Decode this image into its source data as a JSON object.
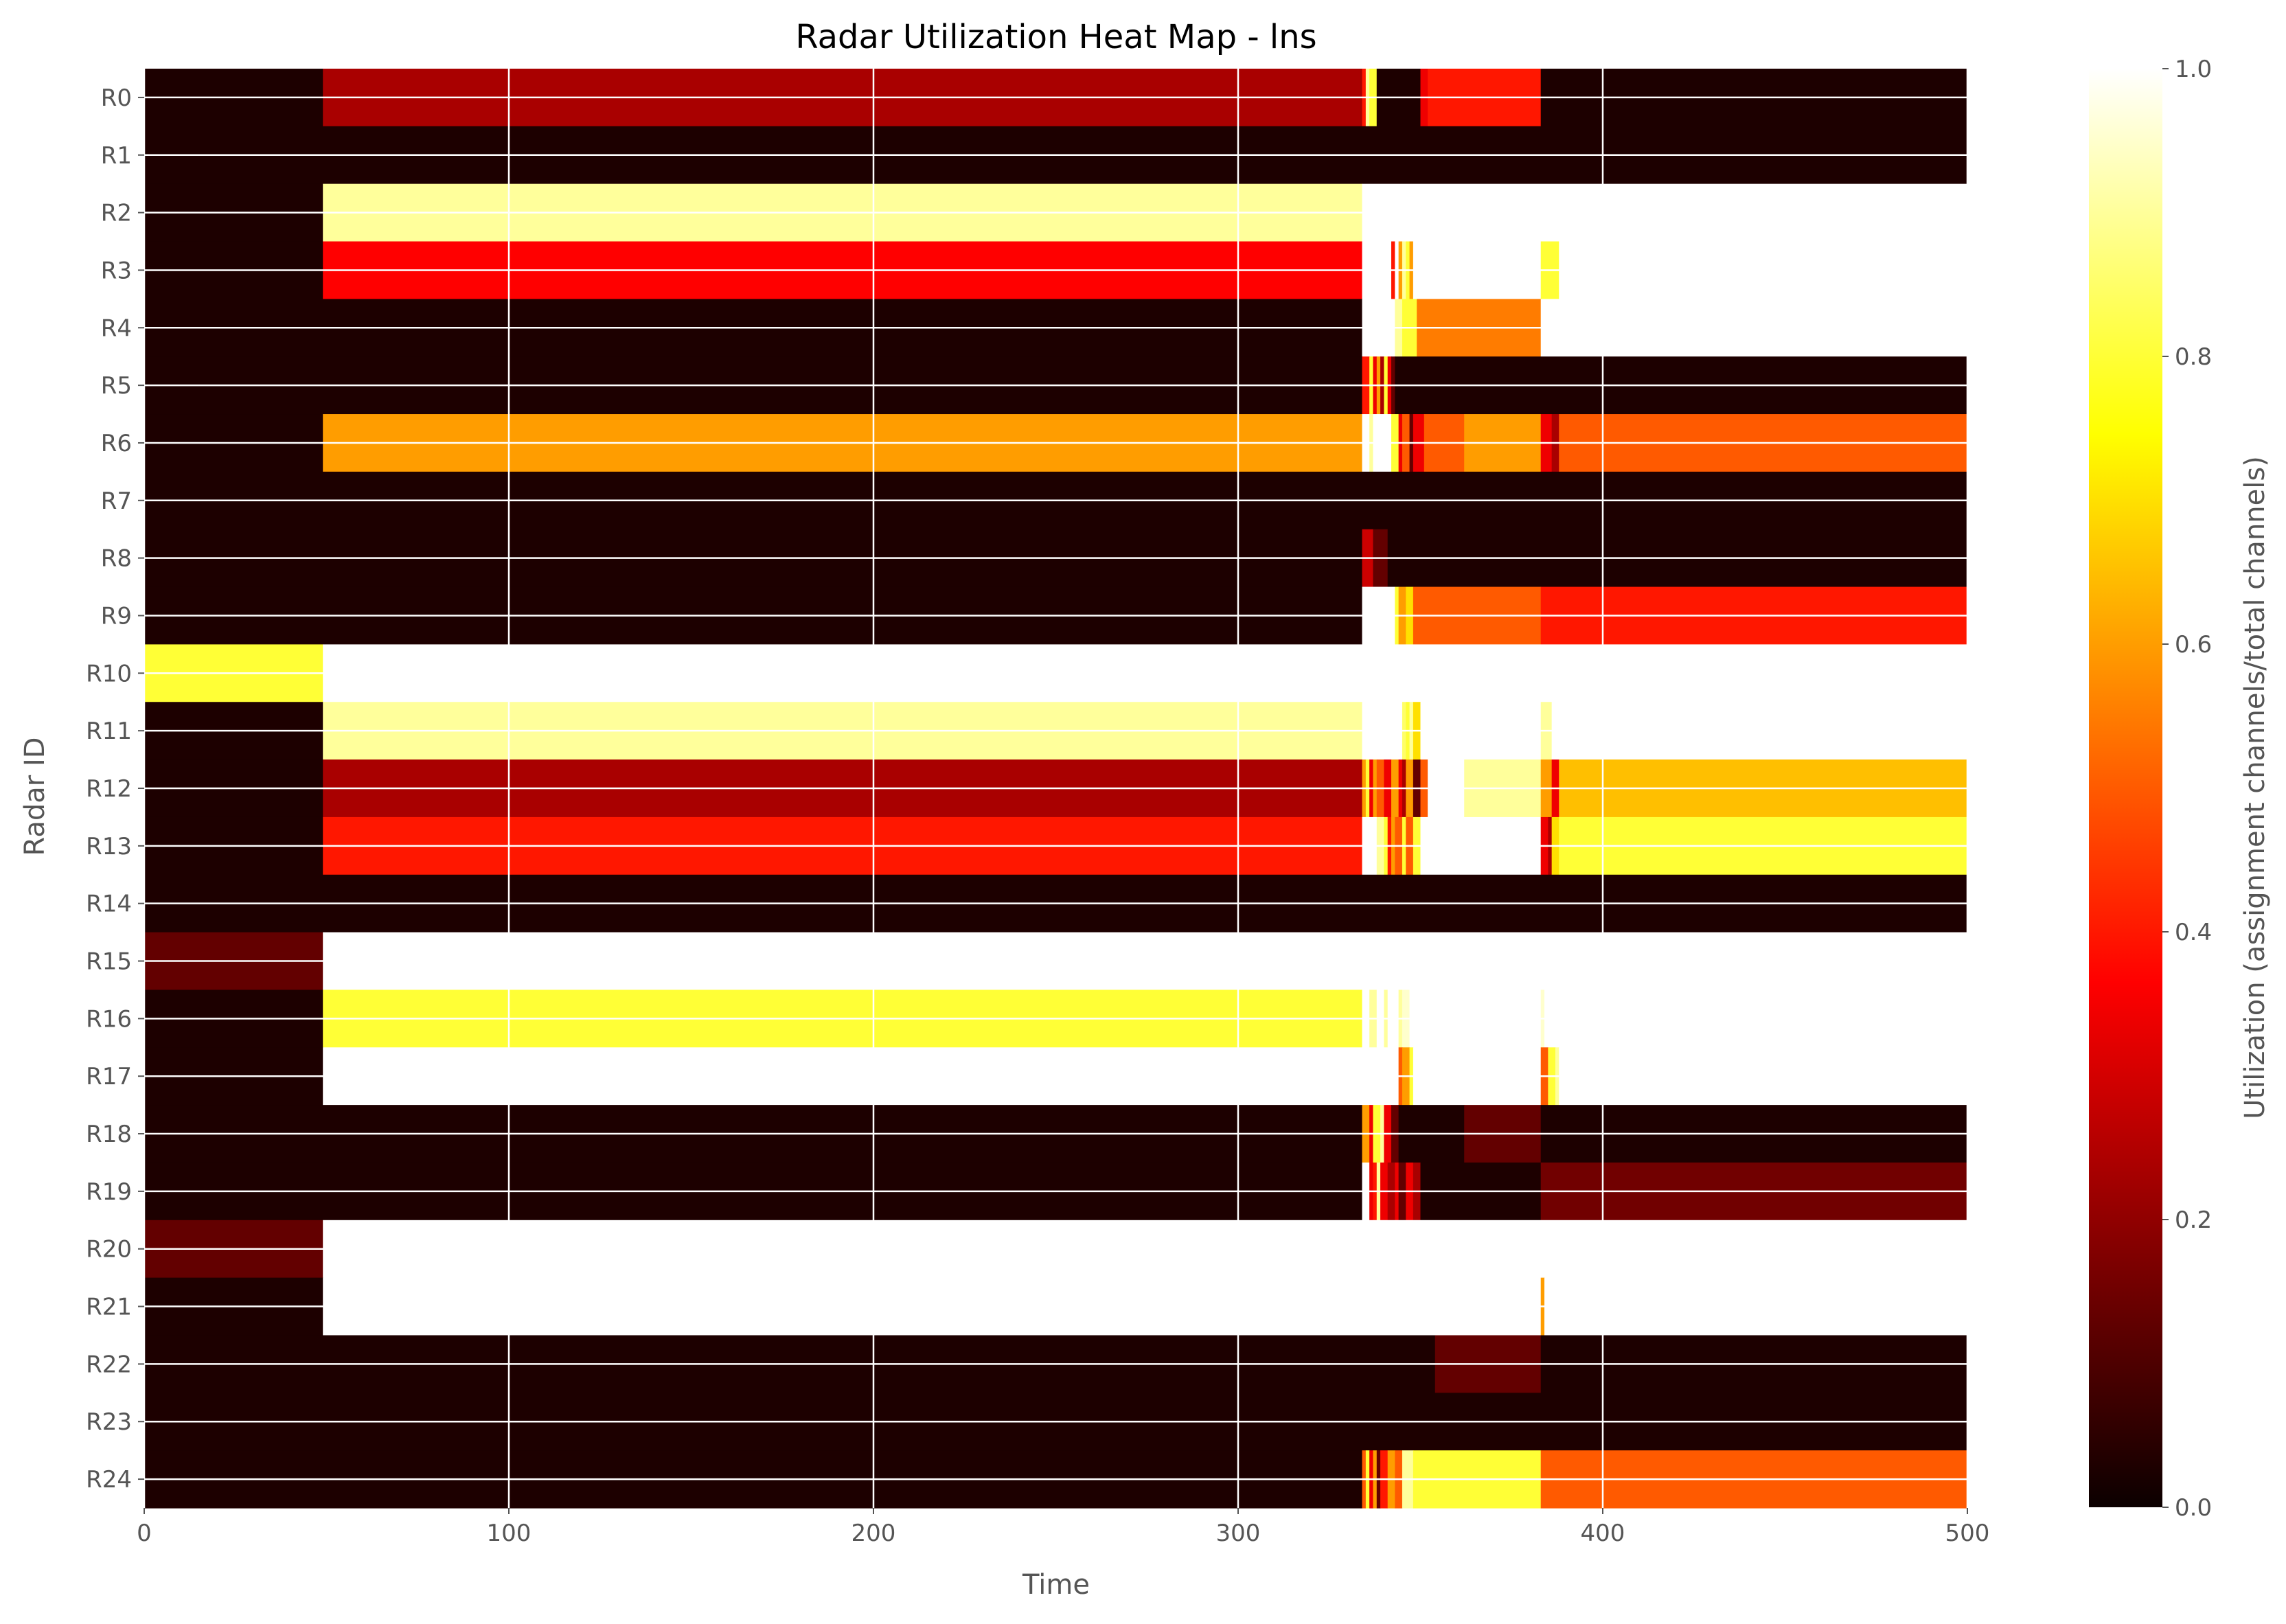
{
  "chart_data": {
    "type": "heatmap",
    "title": "Radar Utilization Heat Map - lns",
    "xlabel": "Time",
    "ylabel": "Radar ID",
    "colorbar_label": "Utilization (assignment channels/total channels)",
    "colormap": "hot",
    "xlim": [
      0,
      500
    ],
    "clim": [
      0.0,
      1.0
    ],
    "x_ticks": [
      0,
      100,
      200,
      300,
      400,
      500
    ],
    "colorbar_ticks": [
      "0.0",
      "0.2",
      "0.4",
      "0.6",
      "0.8",
      "1.0"
    ],
    "grid": true,
    "rows": [
      {
        "id": "R0",
        "segments": [
          [
            0,
            49,
            0
          ],
          [
            49,
            334,
            0.2
          ],
          [
            334,
            335,
            0.4
          ],
          [
            335,
            336,
            0.9
          ],
          [
            336,
            338,
            0.8
          ],
          [
            338,
            350,
            0
          ],
          [
            350,
            352,
            0.3
          ],
          [
            352,
            383,
            0.4
          ],
          [
            383,
            500,
            0
          ]
        ]
      },
      {
        "id": "R1",
        "segments": [
          [
            0,
            500,
            0
          ]
        ]
      },
      {
        "id": "R2",
        "segments": [
          [
            0,
            49,
            0
          ],
          [
            49,
            334,
            0.9
          ],
          [
            334,
            500,
            1.0
          ]
        ]
      },
      {
        "id": "R3",
        "segments": [
          [
            0,
            49,
            0
          ],
          [
            49,
            334,
            0.35
          ],
          [
            334,
            342,
            1.0
          ],
          [
            342,
            343,
            0.4
          ],
          [
            343,
            344,
            1.0
          ],
          [
            344,
            345,
            0.6
          ],
          [
            345,
            346,
            0.9
          ],
          [
            346,
            347,
            0.8
          ],
          [
            347,
            348,
            0.6
          ],
          [
            348,
            383,
            1.0
          ],
          [
            383,
            388,
            0.8
          ],
          [
            388,
            500,
            1.0
          ]
        ]
      },
      {
        "id": "R4",
        "segments": [
          [
            0,
            334,
            0
          ],
          [
            334,
            343,
            1.0
          ],
          [
            343,
            345,
            0.9
          ],
          [
            345,
            349,
            0.8
          ],
          [
            349,
            383,
            0.55
          ],
          [
            383,
            500,
            1.0
          ]
        ]
      },
      {
        "id": "R5",
        "segments": [
          [
            0,
            334,
            0
          ],
          [
            334,
            336,
            0.4
          ],
          [
            336,
            337,
            0.8
          ],
          [
            337,
            338,
            0.3
          ],
          [
            338,
            339,
            0.6
          ],
          [
            339,
            340,
            0.2
          ],
          [
            340,
            341,
            0.8
          ],
          [
            341,
            342,
            0.3
          ],
          [
            342,
            343,
            0.1
          ],
          [
            343,
            500,
            0
          ]
        ]
      },
      {
        "id": "R6",
        "segments": [
          [
            0,
            49,
            0
          ],
          [
            49,
            334,
            0.6
          ],
          [
            334,
            336,
            1.0
          ],
          [
            336,
            337,
            0.9
          ],
          [
            337,
            342,
            1.0
          ],
          [
            342,
            344,
            0.8
          ],
          [
            344,
            345,
            0.3
          ],
          [
            345,
            347,
            0.5
          ],
          [
            347,
            348,
            0.1
          ],
          [
            348,
            351,
            0.3
          ],
          [
            351,
            362,
            0.5
          ],
          [
            362,
            383,
            0.6
          ],
          [
            383,
            386,
            0.3
          ],
          [
            386,
            388,
            0.2
          ],
          [
            388,
            500,
            0.5
          ]
        ]
      },
      {
        "id": "R7",
        "segments": [
          [
            0,
            500,
            0
          ]
        ]
      },
      {
        "id": "R8",
        "segments": [
          [
            0,
            334,
            0
          ],
          [
            334,
            337,
            0.25
          ],
          [
            337,
            341,
            0.1
          ],
          [
            341,
            500,
            0
          ]
        ]
      },
      {
        "id": "R9",
        "segments": [
          [
            0,
            334,
            0
          ],
          [
            334,
            343,
            1.0
          ],
          [
            343,
            344,
            0.8
          ],
          [
            344,
            346,
            0.6
          ],
          [
            346,
            348,
            0.7
          ],
          [
            348,
            383,
            0.5
          ],
          [
            383,
            500,
            0.4
          ]
        ]
      },
      {
        "id": "R10",
        "segments": [
          [
            0,
            49,
            0.8
          ],
          [
            49,
            500,
            1.0
          ]
        ]
      },
      {
        "id": "R11",
        "segments": [
          [
            0,
            49,
            0
          ],
          [
            49,
            334,
            0.9
          ],
          [
            334,
            345,
            1.0
          ],
          [
            345,
            346,
            0.85
          ],
          [
            346,
            347,
            0.8
          ],
          [
            347,
            348,
            0.9
          ],
          [
            348,
            350,
            0.7
          ],
          [
            350,
            383,
            1.0
          ],
          [
            383,
            386,
            0.9
          ],
          [
            386,
            500,
            1.0
          ]
        ]
      },
      {
        "id": "R12",
        "segments": [
          [
            0,
            49,
            0
          ],
          [
            49,
            334,
            0.2
          ],
          [
            334,
            335,
            0.6
          ],
          [
            335,
            336,
            0.8
          ],
          [
            336,
            337,
            0.3
          ],
          [
            337,
            338,
            0.6
          ],
          [
            338,
            340,
            0.5
          ],
          [
            340,
            342,
            0.3
          ],
          [
            342,
            344,
            0.6
          ],
          [
            344,
            345,
            0.3
          ],
          [
            345,
            346,
            0.2
          ],
          [
            346,
            348,
            0.6
          ],
          [
            348,
            350,
            0.1
          ],
          [
            350,
            352,
            0.5
          ],
          [
            352,
            362,
            1.0
          ],
          [
            362,
            383,
            0.9
          ],
          [
            383,
            386,
            0.6
          ],
          [
            386,
            388,
            0.3
          ],
          [
            388,
            500,
            0.65
          ]
        ]
      },
      {
        "id": "R13",
        "segments": [
          [
            0,
            49,
            0
          ],
          [
            49,
            334,
            0.4
          ],
          [
            334,
            338,
            1.0
          ],
          [
            338,
            340,
            0.9
          ],
          [
            340,
            341,
            0.8
          ],
          [
            341,
            342,
            0.4
          ],
          [
            342,
            343,
            0.6
          ],
          [
            343,
            345,
            0.5
          ],
          [
            345,
            346,
            0.8
          ],
          [
            346,
            348,
            0.5
          ],
          [
            348,
            350,
            0.8
          ],
          [
            350,
            383,
            1.0
          ],
          [
            383,
            385,
            0.3
          ],
          [
            385,
            386,
            0.2
          ],
          [
            386,
            388,
            0.7
          ],
          [
            388,
            500,
            0.8
          ]
        ]
      },
      {
        "id": "R14",
        "segments": [
          [
            0,
            500,
            0
          ]
        ]
      },
      {
        "id": "R15",
        "segments": [
          [
            0,
            49,
            0.1
          ],
          [
            49,
            500,
            1.0
          ]
        ]
      },
      {
        "id": "R16",
        "segments": [
          [
            0,
            49,
            0
          ],
          [
            49,
            334,
            0.8
          ],
          [
            334,
            336,
            1.0
          ],
          [
            336,
            338,
            0.9
          ],
          [
            338,
            340,
            1.0
          ],
          [
            340,
            341,
            0.9
          ],
          [
            341,
            344,
            1.0
          ],
          [
            344,
            345,
            0.9
          ],
          [
            345,
            347,
            0.95
          ],
          [
            347,
            383,
            1.0
          ],
          [
            383,
            384,
            0.95
          ],
          [
            384,
            500,
            1.0
          ]
        ]
      },
      {
        "id": "R17",
        "segments": [
          [
            0,
            49,
            0
          ],
          [
            49,
            344,
            1.0
          ],
          [
            344,
            345,
            0.5
          ],
          [
            345,
            347,
            0.6
          ],
          [
            347,
            348,
            0.8
          ],
          [
            348,
            383,
            1.0
          ],
          [
            383,
            385,
            0.5
          ],
          [
            385,
            387,
            0.8
          ],
          [
            387,
            388,
            0.9
          ],
          [
            388,
            500,
            1.0
          ]
        ]
      },
      {
        "id": "R18",
        "segments": [
          [
            0,
            334,
            0
          ],
          [
            334,
            336,
            0.6
          ],
          [
            336,
            337,
            0.3
          ],
          [
            337,
            339,
            0.8
          ],
          [
            339,
            340,
            0.9
          ],
          [
            340,
            342,
            0.3
          ],
          [
            342,
            344,
            0.1
          ],
          [
            344,
            362,
            0
          ],
          [
            362,
            383,
            0.1
          ],
          [
            383,
            500,
            0
          ]
        ]
      },
      {
        "id": "R19",
        "segments": [
          [
            0,
            334,
            0
          ],
          [
            334,
            336,
            1.0
          ],
          [
            336,
            337,
            0.3
          ],
          [
            337,
            338,
            0.4
          ],
          [
            338,
            339,
            0.9
          ],
          [
            339,
            341,
            0.3
          ],
          [
            341,
            343,
            0.2
          ],
          [
            343,
            344,
            0.3
          ],
          [
            344,
            346,
            0.1
          ],
          [
            346,
            348,
            0.3
          ],
          [
            348,
            350,
            0.2
          ],
          [
            350,
            383,
            0
          ],
          [
            383,
            500,
            0.12
          ]
        ]
      },
      {
        "id": "R20",
        "segments": [
          [
            0,
            49,
            0.1
          ],
          [
            49,
            500,
            1.0
          ]
        ]
      },
      {
        "id": "R21",
        "segments": [
          [
            0,
            49,
            0
          ],
          [
            49,
            383,
            1.0
          ],
          [
            383,
            384,
            0.6
          ],
          [
            384,
            500,
            1.0
          ]
        ]
      },
      {
        "id": "R22",
        "segments": [
          [
            0,
            354,
            0
          ],
          [
            354,
            383,
            0.1
          ],
          [
            383,
            500,
            0
          ]
        ]
      },
      {
        "id": "R23",
        "segments": [
          [
            0,
            500,
            0
          ]
        ]
      },
      {
        "id": "R24",
        "segments": [
          [
            0,
            334,
            0
          ],
          [
            334,
            335,
            0.5
          ],
          [
            335,
            336,
            0.8
          ],
          [
            336,
            337,
            0.3
          ],
          [
            337,
            338,
            0.6
          ],
          [
            338,
            339,
            0.1
          ],
          [
            339,
            341,
            0.4
          ],
          [
            341,
            343,
            0.6
          ],
          [
            343,
            345,
            0.5
          ],
          [
            345,
            348,
            0.9
          ],
          [
            348,
            383,
            0.8
          ],
          [
            383,
            500,
            0.5
          ]
        ]
      }
    ]
  }
}
